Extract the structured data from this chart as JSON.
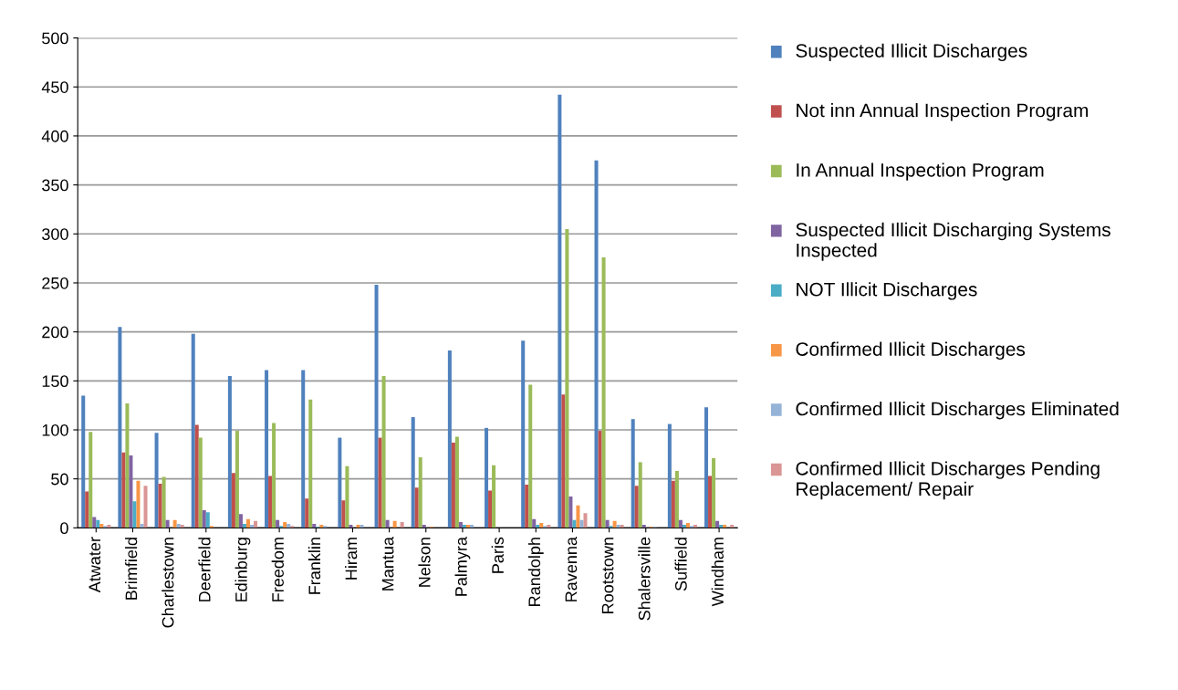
{
  "chart_data": {
    "type": "bar",
    "categories": [
      "Atwater",
      "Brimfield",
      "Charlestown",
      "Deerfield",
      "Edinburg",
      "Freedom",
      "Franklin",
      "Hiram",
      "Mantua",
      "Nelson",
      "Palmyra",
      "Paris",
      "Randolph",
      "Ravenna",
      "Rootstown",
      "Shalersville",
      "Suffield",
      "Windham"
    ],
    "series": [
      {
        "name": "Suspected Illicit Discharges",
        "color": "#4f81bd",
        "values": [
          135,
          205,
          97,
          198,
          155,
          161,
          161,
          92,
          248,
          113,
          181,
          102,
          191,
          442,
          375,
          111,
          106,
          123
        ]
      },
      {
        "name": "Not inn Annual Inspection Program",
        "color": "#c0504d",
        "values": [
          37,
          77,
          45,
          105,
          56,
          53,
          30,
          28,
          92,
          41,
          87,
          38,
          44,
          136,
          99,
          43,
          48,
          53
        ]
      },
      {
        "name": "In Annual Inspection Program",
        "color": "#9bbb59",
        "values": [
          98,
          127,
          52,
          92,
          99,
          107,
          131,
          63,
          155,
          72,
          93,
          64,
          146,
          305,
          276,
          67,
          58,
          71
        ]
      },
      {
        "name": "Suspected Illicit Discharging Systems Inspected",
        "color": "#8064a2",
        "values": [
          11,
          74,
          8,
          18,
          14,
          8,
          4,
          3,
          8,
          3,
          6,
          0,
          9,
          32,
          8,
          3,
          8,
          7
        ]
      },
      {
        "name": "NOT Illicit Discharges",
        "color": "#4bacc6",
        "values": [
          8,
          27,
          0,
          16,
          4,
          2,
          1,
          0,
          0,
          0,
          3,
          0,
          3,
          8,
          2,
          0,
          3,
          3
        ]
      },
      {
        "name": "Confirmed Illicit Discharges",
        "color": "#f79646",
        "values": [
          4,
          48,
          8,
          2,
          9,
          6,
          3,
          3,
          7,
          1,
          3,
          0,
          5,
          23,
          7,
          1,
          5,
          3
        ]
      },
      {
        "name": "Confirmed Illicit Discharges Eliminated",
        "color": "#95b3d7",
        "values": [
          2,
          4,
          4,
          0,
          3,
          4,
          2,
          3,
          0,
          0,
          3,
          0,
          2,
          8,
          3,
          1,
          2,
          0
        ]
      },
      {
        "name": "Confirmed Illicit Discharges Pending Replacement/ Repair",
        "color": "#d99694",
        "values": [
          3,
          43,
          3,
          0,
          7,
          2,
          0,
          0,
          6,
          0,
          0,
          0,
          3,
          15,
          3,
          0,
          3,
          3
        ]
      }
    ],
    "ylim": [
      0,
      500
    ],
    "yticks": [
      0,
      50,
      100,
      150,
      200,
      250,
      300,
      350,
      400,
      450,
      500
    ],
    "grid": "y",
    "legend": "right"
  }
}
